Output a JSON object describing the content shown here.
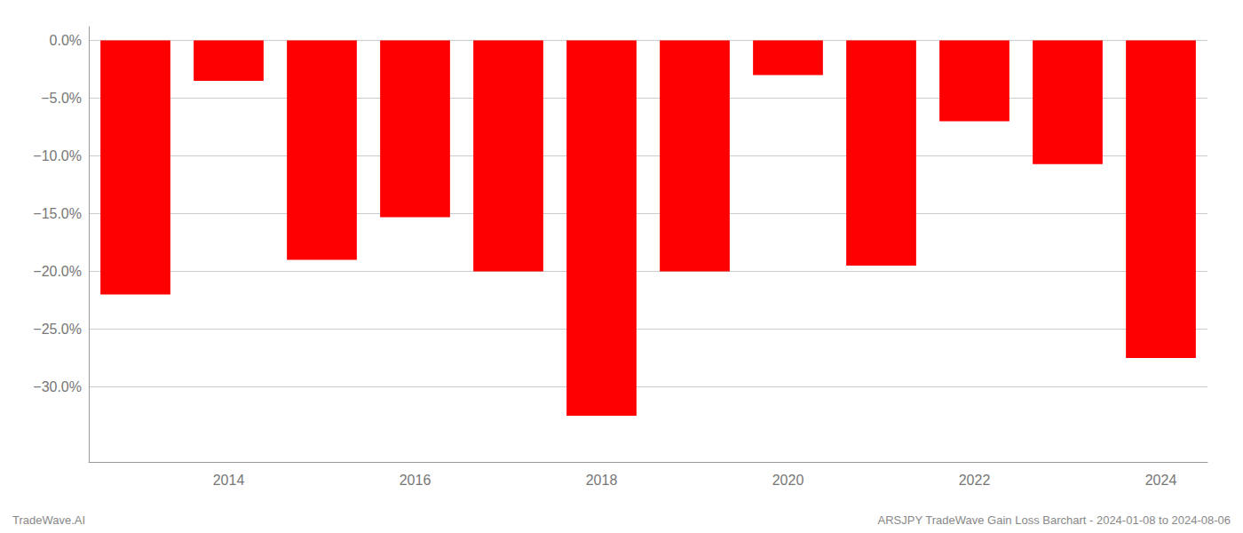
{
  "chart_data": {
    "type": "bar",
    "categories": [
      null,
      "2014",
      null,
      "2016",
      null,
      "2018",
      null,
      "2020",
      null,
      "2022",
      null,
      "2024"
    ],
    "values": [
      -0.22,
      -0.035,
      -0.19,
      -0.153,
      -0.2,
      -0.325,
      -0.2,
      -0.03,
      -0.195,
      -0.07,
      -0.107,
      -0.275
    ],
    "color": "#ff0000",
    "ylim": [
      -0.365,
      0.012
    ],
    "yticks": [
      {
        "value": 0.0,
        "label": "0.0%"
      },
      {
        "value": -0.05,
        "label": "−5.0%"
      },
      {
        "value": -0.1,
        "label": "−10.0%"
      },
      {
        "value": -0.15,
        "label": "−15.0%"
      },
      {
        "value": -0.2,
        "label": "−20.0%"
      },
      {
        "value": -0.25,
        "label": "−25.0%"
      },
      {
        "value": -0.3,
        "label": "−30.0%"
      }
    ],
    "grid": true,
    "annotations": [
      "TradeWave.AI",
      "ARSJPY TradeWave Gain Loss Barchart - 2024-01-08 to 2024-08-06"
    ]
  }
}
